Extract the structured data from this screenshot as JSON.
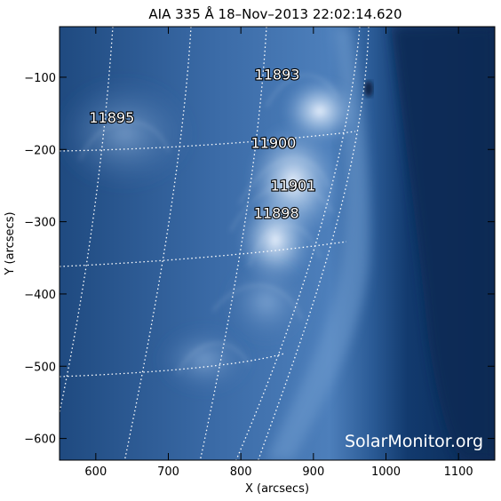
{
  "image": {
    "title": "AIA 335 Å 18–Nov–2013 22:02:14.620",
    "xlabel": "X (arcsecs)",
    "ylabel": "Y (arcsecs)",
    "watermark": "SolarMonitor.org",
    "colors": {
      "background": "#0a2a55",
      "bright": "#e8f0fa",
      "grid": "#ffffff"
    },
    "x_range": [
      550,
      1150
    ],
    "y_range": [
      -630,
      -30
    ],
    "x_ticks": [
      {
        "value": 600,
        "label": "600"
      },
      {
        "value": 700,
        "label": "700"
      },
      {
        "value": 800,
        "label": "800"
      },
      {
        "value": 900,
        "label": "900"
      },
      {
        "value": 1000,
        "label": "1000"
      },
      {
        "value": 1100,
        "label": "1100"
      }
    ],
    "y_ticks": [
      {
        "value": -100,
        "label": "−100"
      },
      {
        "value": -200,
        "label": "−200"
      },
      {
        "value": -300,
        "label": "−300"
      },
      {
        "value": -400,
        "label": "−400"
      },
      {
        "value": -500,
        "label": "−500"
      },
      {
        "value": -600,
        "label": "−600"
      }
    ],
    "active_regions": [
      {
        "label": "11893",
        "x": 850,
        "y": -103
      },
      {
        "label": "11895",
        "x": 622,
        "y": -163
      },
      {
        "label": "11900",
        "x": 845,
        "y": -198
      },
      {
        "label": "11901",
        "x": 872,
        "y": -257
      },
      {
        "label": "11898",
        "x": 849,
        "y": -295
      }
    ]
  }
}
